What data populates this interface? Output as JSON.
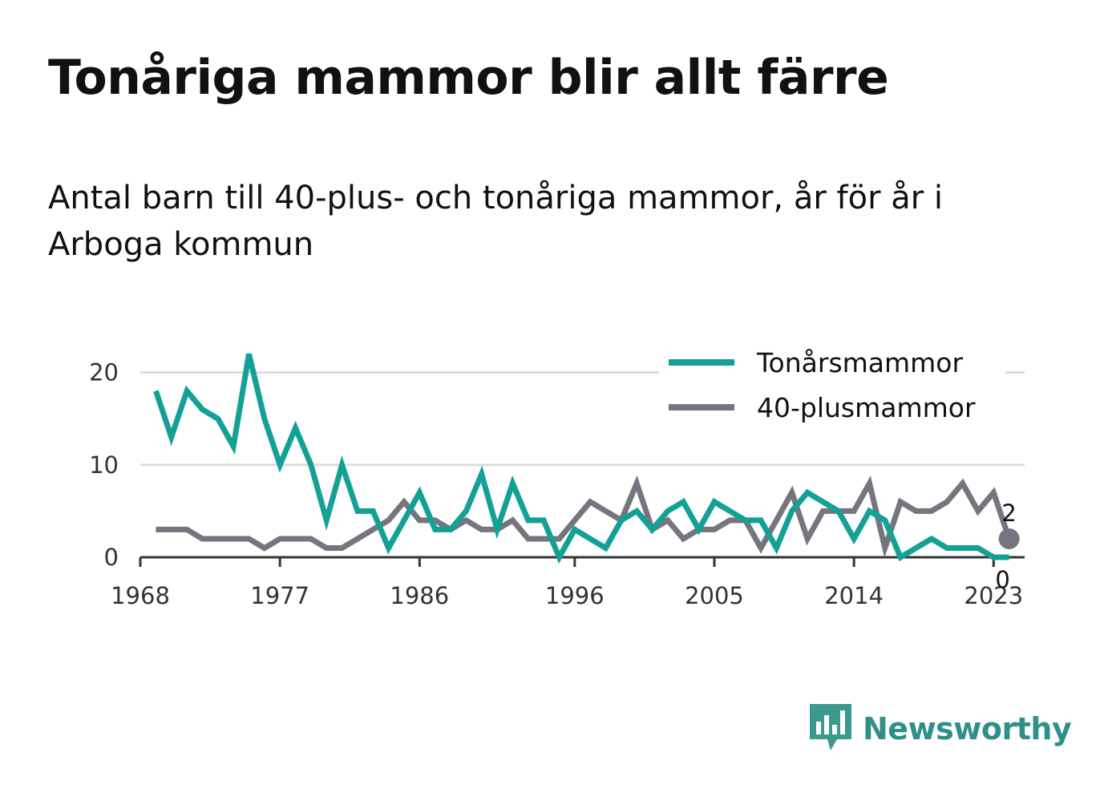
{
  "title": "Tonåriga mammor blir allt färre",
  "subtitle": "Antal barn till 40-plus- och tonåriga mammor, år för år i Arboga kommun",
  "brand": "Newsworthy",
  "colors": {
    "teen": "#13a196",
    "plus40": "#76747c",
    "grid": "#dddddd",
    "axis": "#333333"
  },
  "chart_data": {
    "type": "line",
    "title": "Tonåriga mammor blir allt färre",
    "xlabel": "",
    "ylabel": "",
    "x": [
      1969,
      1970,
      1971,
      1972,
      1973,
      1974,
      1975,
      1976,
      1977,
      1978,
      1979,
      1980,
      1981,
      1982,
      1983,
      1984,
      1985,
      1986,
      1987,
      1988,
      1989,
      1990,
      1991,
      1992,
      1993,
      1994,
      1995,
      1996,
      1997,
      1998,
      1999,
      2000,
      2001,
      2002,
      2003,
      2004,
      2005,
      2006,
      2007,
      2008,
      2009,
      2010,
      2011,
      2012,
      2013,
      2014,
      2015,
      2016,
      2017,
      2018,
      2019,
      2020,
      2021,
      2022,
      2023,
      2024
    ],
    "xticks": [
      1968,
      1977,
      1986,
      1996,
      2005,
      2014,
      2023
    ],
    "yticks": [
      0,
      10,
      20
    ],
    "xlim": [
      1968,
      2025
    ],
    "ylim": [
      0,
      23
    ],
    "grid": true,
    "legend_position": "top-right",
    "series": [
      {
        "name": "Tonårsmammor",
        "color": "#13a196",
        "values": [
          18,
          13,
          18,
          16,
          15,
          12,
          22,
          15,
          10,
          14,
          10,
          4,
          10,
          5,
          5,
          1,
          4,
          7,
          3,
          3,
          5,
          9,
          3,
          8,
          4,
          4,
          0,
          3,
          2,
          1,
          4,
          5,
          3,
          5,
          6,
          3,
          6,
          5,
          4,
          4,
          1,
          5,
          7,
          6,
          5,
          2,
          5,
          4,
          0,
          1,
          2,
          1,
          1,
          1,
          0,
          0
        ]
      },
      {
        "name": "40-plusmammor",
        "color": "#76747c",
        "values": [
          3,
          3,
          3,
          2,
          2,
          2,
          2,
          1,
          2,
          2,
          2,
          1,
          1,
          2,
          3,
          4,
          6,
          4,
          4,
          3,
          4,
          3,
          3,
          4,
          2,
          2,
          2,
          4,
          6,
          5,
          4,
          8,
          3,
          4,
          2,
          3,
          3,
          4,
          4,
          1,
          4,
          7,
          2,
          5,
          5,
          5,
          8,
          1,
          6,
          5,
          5,
          6,
          8,
          5,
          7,
          2
        ]
      }
    ],
    "end_labels": {
      "plus40": "2",
      "teen": "0"
    }
  }
}
